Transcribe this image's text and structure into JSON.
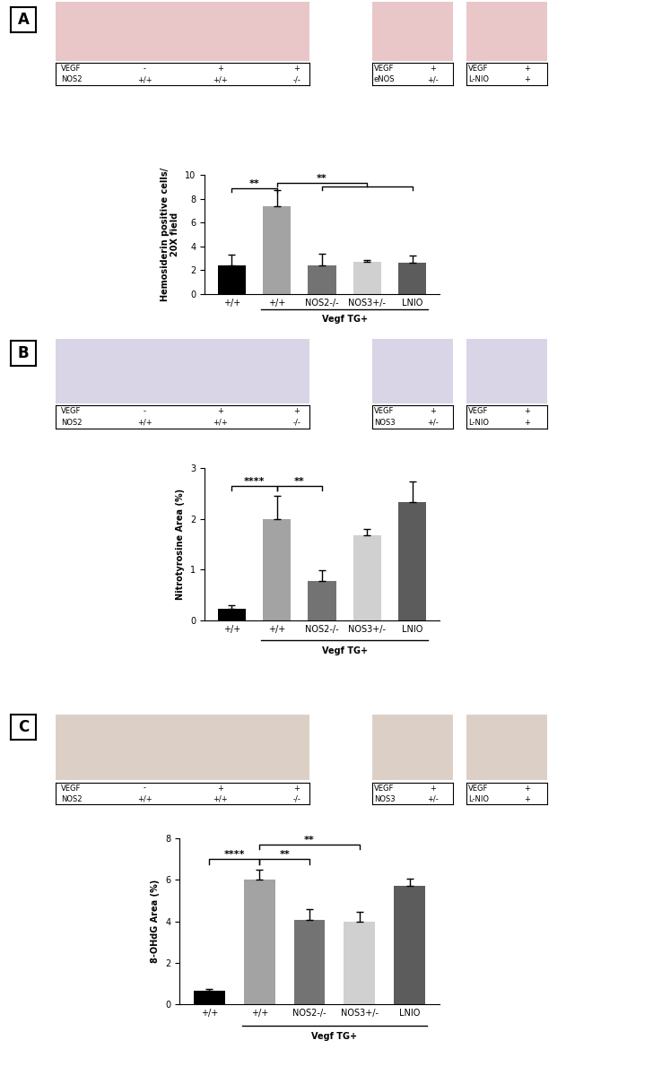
{
  "chart_data": [
    {
      "type": "bar",
      "panel_label": "A",
      "image_labels": [
        {
          "rows": [
            [
              "VEGF",
              "-",
              "+",
              "+"
            ],
            [
              "NOS2",
              "+/+",
              "+/+",
              "-/-"
            ]
          ]
        },
        {
          "rows": [
            [
              "VEGF",
              "+"
            ],
            [
              "eNOS",
              "+/-"
            ]
          ]
        },
        {
          "rows": [
            [
              "VEGF",
              "+"
            ],
            [
              "L-NIO",
              "+"
            ]
          ]
        }
      ],
      "y_label": "Hemosiderin positive cells/\n20X field",
      "categories": [
        "+/+",
        "+/+",
        "NOS2-/-",
        "NOS3+/-",
        "LNIO"
      ],
      "values": [
        2.4,
        7.4,
        2.4,
        2.7,
        2.6
      ],
      "errors": [
        0.9,
        1.3,
        1.0,
        0.15,
        0.6
      ],
      "colors": [
        "#000000",
        "#a3a3a3",
        "#737373",
        "#d0d0d0",
        "#5c5c5c"
      ],
      "ylim": [
        0,
        10
      ],
      "yticks": [
        0,
        2,
        4,
        6,
        8,
        10
      ],
      "group": {
        "label": "Vegf TG+",
        "from": 1,
        "to": 4
      },
      "significance": [
        {
          "left": 0,
          "right": [
            1,
            1
          ],
          "y": 8.9,
          "label": "**"
        },
        {
          "left": 1,
          "right": [
            2,
            4
          ],
          "y": 9.3,
          "label": "**"
        }
      ]
    },
    {
      "type": "bar",
      "panel_label": "B",
      "image_labels": [
        {
          "rows": [
            [
              "VEGF",
              "-",
              "+",
              "+"
            ],
            [
              "NOS2",
              "+/+",
              "+/+",
              "-/-"
            ]
          ]
        },
        {
          "rows": [
            [
              "VEGF",
              "+"
            ],
            [
              "NOS3",
              "+/-"
            ]
          ]
        },
        {
          "rows": [
            [
              "VEGF",
              "+"
            ],
            [
              "L-NIO",
              "+"
            ]
          ]
        }
      ],
      "y_label": "Nitrotyrosine Area (%)",
      "categories": [
        "+/+",
        "+/+",
        "NOS2-/-",
        "NOS3+/-",
        "LNIO"
      ],
      "values": [
        0.23,
        2.0,
        0.78,
        1.67,
        2.33
      ],
      "errors": [
        0.07,
        0.45,
        0.2,
        0.13,
        0.4
      ],
      "colors": [
        "#000000",
        "#a3a3a3",
        "#737373",
        "#d0d0d0",
        "#5c5c5c"
      ],
      "ylim": [
        0,
        3
      ],
      "yticks": [
        0,
        1,
        2,
        3
      ],
      "group": {
        "label": "Vegf TG+",
        "from": 1,
        "to": 4
      },
      "significance": [
        {
          "left": 0,
          "right": [
            1,
            1
          ],
          "y": 2.65,
          "label": "****"
        },
        {
          "left": 1,
          "right": [
            2,
            2
          ],
          "y": 2.65,
          "label": "**"
        }
      ]
    },
    {
      "type": "bar",
      "panel_label": "C",
      "image_labels": [
        {
          "rows": [
            [
              "VEGF",
              "-",
              "+",
              "+"
            ],
            [
              "NOS2",
              "+/+",
              "+/+",
              "-/-"
            ]
          ]
        },
        {
          "rows": [
            [
              "VEGF",
              "+"
            ],
            [
              "NOS3",
              "+/-"
            ]
          ]
        },
        {
          "rows": [
            [
              "VEGF",
              "+"
            ],
            [
              "L-NIO",
              "+"
            ]
          ]
        }
      ],
      "y_label": "8-OHdG Area (%)",
      "categories": [
        "+/+",
        "+/+",
        "NOS2-/-",
        "NOS3+/-",
        "LNIO"
      ],
      "values": [
        0.65,
        6.0,
        4.05,
        4.0,
        5.7
      ],
      "errors": [
        0.08,
        0.5,
        0.55,
        0.45,
        0.35
      ],
      "colors": [
        "#000000",
        "#a3a3a3",
        "#737373",
        "#d0d0d0",
        "#5c5c5c"
      ],
      "ylim": [
        0,
        8
      ],
      "yticks": [
        0,
        2,
        4,
        6,
        8
      ],
      "group": {
        "label": "Vegf TG+",
        "from": 1,
        "to": 4
      },
      "significance": [
        {
          "left": 0,
          "right": [
            1,
            1
          ],
          "y": 7.0,
          "label": "****"
        },
        {
          "left": 1,
          "right": [
            2,
            2
          ],
          "y": 7.0,
          "label": "**"
        },
        {
          "left": 1,
          "right": [
            3,
            3
          ],
          "y": 7.7,
          "label": "**"
        }
      ]
    }
  ]
}
